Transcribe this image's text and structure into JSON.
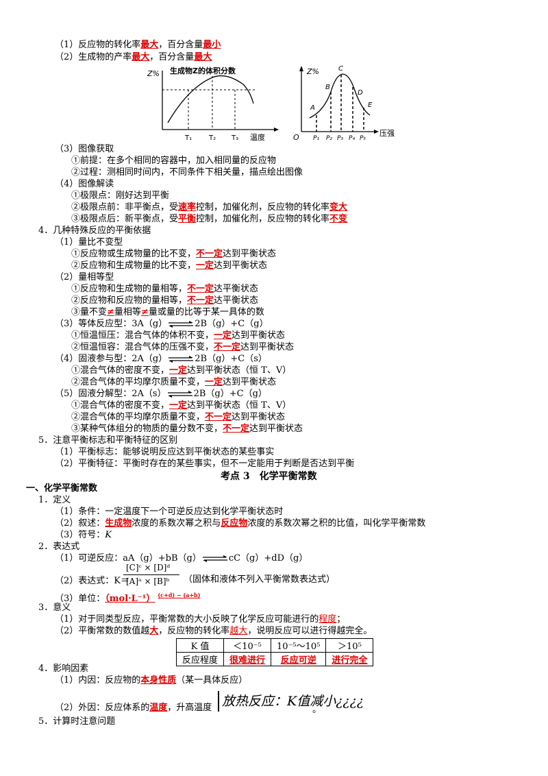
{
  "colors": {
    "accent_red": "#e00000"
  },
  "top": {
    "l1_pre": "（1）反应物的转化率",
    "l1_r1": "最大",
    "l1_mid": "，百分含量",
    "l1_r2": "最小",
    "l2_pre": "（2）生成物的产率",
    "l2_r1": "最大",
    "l2_mid": "，百分含量",
    "l2_r2": "最大"
  },
  "fig1": {
    "ylabel": "Z%",
    "title": "生成物Z的体积分数",
    "xlabel": "温度",
    "t1": "T₁",
    "t2": "T₂",
    "t3": "T₃"
  },
  "fig2": {
    "ylabel": "Z%",
    "origin": "O",
    "xlabel": "压强",
    "pts": [
      "A",
      "B",
      "C",
      "D",
      "E"
    ],
    "ticks": [
      "P₁",
      "P₂",
      "P₃",
      "P₄",
      "P₅"
    ]
  },
  "s3": {
    "h": "（3）图像获取",
    "a": "①前提：在多个相同的容器中，加入相同量的反应物",
    "b": "②过程：测相同时间内，不同条件下相关量，描点绘出图像"
  },
  "s4": {
    "h": "（4）图像解读",
    "a": "①极限点：刚好达到平衡",
    "b_pre": "②极限点前：非平衡点，受",
    "b_r1": "速率",
    "b_mid": "控制，加催化剂，反应物的转化率",
    "b_r2": "变大",
    "c_pre": "③极限点后：新平衡点，受",
    "c_r1": "平衡",
    "c_mid": "控制，加催化剂，反应物的转化率",
    "c_r2": "不变"
  },
  "p4": {
    "h": "4．几种特殊反应的平衡依据",
    "h1": "（1）量比不变型",
    "h1a_pre": "①反应物或生成物量的比不变，",
    "h1a_r": "不一定",
    "h1a_post": "达到平衡状态",
    "h1b_pre": "②反应物和生成物量的比不变，",
    "h1b_r": "一定",
    "h1b_post": "达到平衡状态",
    "h2": "（2）量相等型",
    "h2a_pre": "①反应物和生成物的量相等，",
    "h2a_r": "不一定",
    "h2a_post": "达平衡状态",
    "h2b_pre": "②反应物和反应物的量相等，",
    "h2b_r": "不一定",
    "h2b_post": "达平衡状态",
    "h2c_p1": "③量不变",
    "h2c_r1": "≠",
    "h2c_p2": "量相等",
    "h2c_r2": "≠",
    "h2c_p3": "量或量的比等于某一具体的数",
    "h3_pre": "（3）等体反应型：3A（g）",
    "h3_post": "2B（g）+C（g）",
    "h3a_pre": "①恒温恒压：混合气体的体积不变，",
    "h3a_r": "一定",
    "h3a_post": "达到平衡状态",
    "h3b_pre": "②恒温恒容：混合气体的压强不变，",
    "h3b_r": "不一定",
    "h3b_post": "达到平衡状态",
    "h4_pre": "（4）固液参与型：2A（g）",
    "h4_post": "2B（g）+C（s）",
    "h4a_pre": "①混合气体的密度不变，",
    "h4a_r": "一定",
    "h4a_post": "达到平衡状态（恒 T、V）",
    "h4b_pre": "②混合气体的平均摩尔质量不变，",
    "h4b_r": "一定",
    "h4b_post": "达到平衡状态",
    "h5_pre": "（5）固液分解型：2A（s）",
    "h5_post": "2B（g）+C（g）",
    "h5a_pre": "①混合气体的密度不变，",
    "h5a_r": "一定",
    "h5a_post": "达到平衡状态（恒 T、V）",
    "h5b_pre": "②混合气体的平均摩尔质量不变，",
    "h5b_r": "不一定",
    "h5b_post": "达到平衡状态",
    "h5c_pre": "③某种气体组分的物质的量分数不变，",
    "h5c_r": "不一定",
    "h5c_post": "达到平衡状态"
  },
  "p5": {
    "h": "5．注意平衡标志和平衡特征的区别",
    "a": "（1）平衡标志：能够说明反应达到平衡状态的某些事实",
    "b": "（2）平衡特征：平衡时存在的某些事实，但不一定能用于判断是否达到平衡"
  },
  "kd": {
    "title": "考点 3　化学平衡常数",
    "sec": "一、化学平衡常数",
    "d1": "1．定义",
    "d1a": "（1）条件：一定温度下一个可逆反应达到化学平衡状态时",
    "d1b_pre": "（2）叙述：",
    "d1b_r1": "生成物",
    "d1b_mid": "浓度的系数次幂之积与",
    "d1b_r2": "反应物",
    "d1b_post": "浓度的系数次幂之积的比值，叫化学平衡常数",
    "d1c_pre": "（3）符号：",
    "d1c_k": "K",
    "d2": "2．表达式",
    "d2a_pre": "（1）可逆反应：aA（g）+bB（g）",
    "d2a_post": "cC（g）+dD（g）",
    "frac_num": "[C]ᶜ × [D]ᵈ",
    "frac_den": "[A]ᵃ × [B]ᵇ",
    "d2b_pre": "（2）表达式：K＝",
    "d2b_post": "（固体和液体不列入平衡常数表达式）",
    "d2c_pre": "（3）单位：",
    "d2c_r": "（mol·L⁻¹）",
    "d2c_exp": "(c+d) − (a+b)",
    "d3": "3．意义",
    "d3a_pre": "（1）对于同类型反应，平衡常数的大小反映了化学反应可能进行的",
    "d3a_r": "程度",
    "d3a_post": "；",
    "d3b_pre": "（2）平衡常数的数值越",
    "d3b_r1": "大",
    "d3b_mid": "，反应物的转化率",
    "d3b_r2": "越大",
    "d3b_post": "，说明反应可以进行得越完全。",
    "d4": "4．影响因素",
    "d4a_pre": "（1）内因：反应物的",
    "d4a_r": "本身性质",
    "d4a_post": "（某一具体反应）",
    "d4b_pre": "（2）外因：反应体系的",
    "d4b_r": "温度",
    "d4b_post": "，升高温度",
    "d4b_hand": "放热反应：K值减小¿¿¿¿",
    "d4b_end": "。",
    "d5": "5．计算时注意问题"
  },
  "ktable": {
    "r1": [
      "K 值",
      "＜10⁻⁵",
      "10⁻⁵～10⁵",
      "＞10⁵"
    ],
    "r2": [
      "反应程度",
      "很难进行",
      "反应可逆",
      "进行完全"
    ]
  }
}
